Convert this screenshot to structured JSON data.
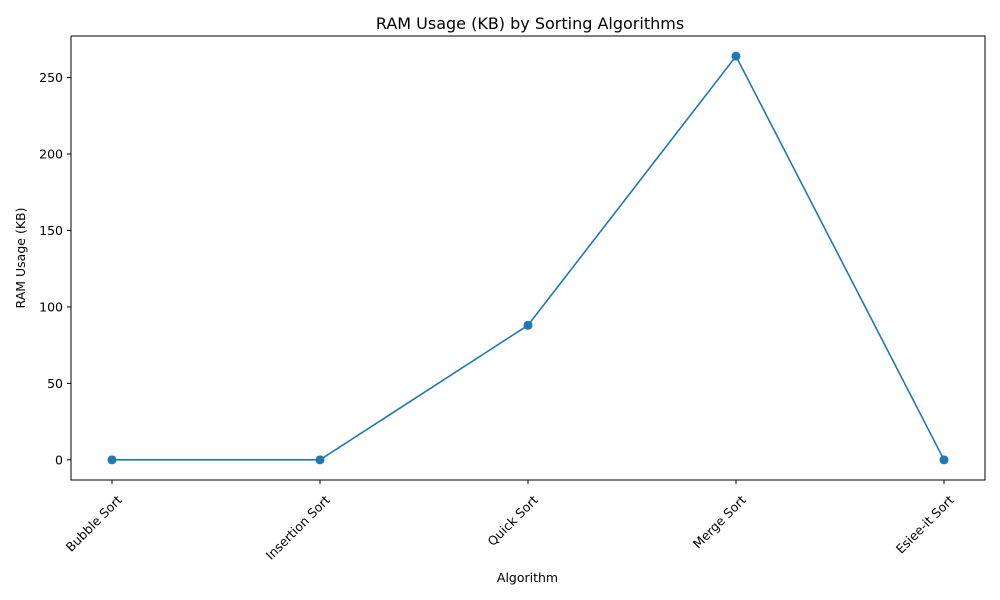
{
  "chart_data": {
    "type": "line",
    "title": "RAM Usage (KB) by Sorting Algorithms",
    "xlabel": "Algorithm",
    "ylabel": "RAM Usage (KB)",
    "categories": [
      "Bubble Sort",
      "Insertion Sort",
      "Quick Sort",
      "Merge Sort",
      "Esiee-it Sort"
    ],
    "series": [
      {
        "values": [
          0,
          0,
          88,
          264,
          0
        ]
      }
    ],
    "ylim": [
      -13.2,
      277.2
    ],
    "yticks": [
      0,
      50,
      100,
      150,
      200,
      250
    ],
    "grid": false,
    "line_color": "#1f77b4",
    "marker": "circle"
  }
}
